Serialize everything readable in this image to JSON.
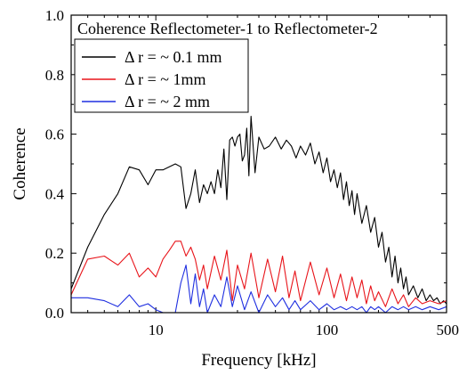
{
  "chart_data": {
    "type": "line",
    "title": "Coherence Reflectometer-1 to Reflectometer-2",
    "xlabel": "Frequency [kHz]",
    "ylabel": "Coherence",
    "x_scale": "log",
    "xlim": [
      3.2,
      500
    ],
    "ylim": [
      0.0,
      1.0
    ],
    "x_ticks": [
      10,
      100,
      500
    ],
    "x_tick_labels": [
      "10",
      "100",
      "500"
    ],
    "y_ticks": [
      0.0,
      0.2,
      0.4,
      0.6,
      0.8,
      1.0
    ],
    "y_tick_labels": [
      "0.0",
      "0.2",
      "0.4",
      "0.6",
      "0.8",
      "1.0"
    ],
    "grid": false,
    "legend_position": "top-left",
    "series": [
      {
        "name": "Δ r = ~ 0.1 mm",
        "color": "#000000",
        "x": [
          3.2,
          4,
          5,
          6,
          7,
          8,
          9,
          10,
          11,
          12,
          13,
          14,
          15,
          16,
          17,
          18,
          19,
          20,
          21,
          22,
          23,
          24,
          25,
          26,
          27,
          28,
          29,
          30,
          31,
          32,
          33,
          34,
          35,
          36,
          38,
          40,
          43,
          46,
          50,
          54,
          58,
          62,
          66,
          70,
          75,
          80,
          85,
          90,
          95,
          100,
          105,
          110,
          115,
          120,
          125,
          130,
          135,
          140,
          145,
          150,
          160,
          170,
          180,
          190,
          200,
          210,
          220,
          230,
          240,
          250,
          260,
          270,
          280,
          290,
          300,
          320,
          340,
          360,
          380,
          400,
          420,
          440,
          460,
          480,
          500
        ],
        "y": [
          0.08,
          0.22,
          0.33,
          0.4,
          0.49,
          0.48,
          0.43,
          0.48,
          0.48,
          0.49,
          0.5,
          0.49,
          0.35,
          0.4,
          0.48,
          0.37,
          0.43,
          0.4,
          0.44,
          0.4,
          0.48,
          0.42,
          0.55,
          0.38,
          0.58,
          0.59,
          0.56,
          0.59,
          0.6,
          0.51,
          0.53,
          0.62,
          0.46,
          0.66,
          0.47,
          0.59,
          0.55,
          0.56,
          0.59,
          0.55,
          0.58,
          0.56,
          0.52,
          0.56,
          0.53,
          0.57,
          0.5,
          0.54,
          0.47,
          0.52,
          0.44,
          0.48,
          0.42,
          0.47,
          0.38,
          0.44,
          0.36,
          0.41,
          0.33,
          0.4,
          0.3,
          0.36,
          0.27,
          0.32,
          0.22,
          0.27,
          0.17,
          0.22,
          0.12,
          0.19,
          0.1,
          0.15,
          0.08,
          0.12,
          0.06,
          0.09,
          0.05,
          0.08,
          0.04,
          0.06,
          0.04,
          0.05,
          0.03,
          0.04,
          0.03
        ]
      },
      {
        "name": "Δ r = ~ 1mm",
        "color": "#e8141a",
        "x": [
          3.2,
          4,
          5,
          6,
          7,
          8,
          9,
          10,
          11,
          12,
          13,
          14,
          15,
          16,
          17,
          18,
          19,
          20,
          22,
          24,
          26,
          28,
          30,
          33,
          36,
          40,
          45,
          50,
          55,
          60,
          65,
          70,
          80,
          90,
          100,
          110,
          120,
          130,
          140,
          150,
          160,
          170,
          180,
          190,
          200,
          220,
          240,
          260,
          280,
          300,
          330,
          360,
          400,
          450,
          500
        ],
        "y": [
          0.06,
          0.18,
          0.19,
          0.16,
          0.2,
          0.12,
          0.15,
          0.12,
          0.18,
          0.21,
          0.24,
          0.24,
          0.19,
          0.22,
          0.18,
          0.11,
          0.16,
          0.08,
          0.19,
          0.11,
          0.21,
          0.04,
          0.16,
          0.08,
          0.2,
          0.05,
          0.18,
          0.07,
          0.19,
          0.05,
          0.14,
          0.04,
          0.17,
          0.06,
          0.15,
          0.05,
          0.13,
          0.04,
          0.12,
          0.05,
          0.11,
          0.03,
          0.09,
          0.04,
          0.07,
          0.02,
          0.08,
          0.03,
          0.06,
          0.02,
          0.05,
          0.03,
          0.04,
          0.03,
          0.04
        ]
      },
      {
        "name": "Δ r = ~ 2 mm",
        "color": "#1f2fe0",
        "x": [
          3.2,
          4,
          5,
          6,
          7,
          8,
          9,
          10,
          11,
          12,
          13,
          14,
          15,
          16,
          17,
          18,
          19,
          20,
          22,
          24,
          26,
          28,
          30,
          33,
          36,
          40,
          45,
          50,
          55,
          60,
          65,
          70,
          80,
          90,
          100,
          110,
          120,
          130,
          140,
          150,
          160,
          170,
          180,
          190,
          200,
          220,
          240,
          260,
          280,
          300,
          330,
          360,
          400,
          450,
          500
        ],
        "y": [
          0.05,
          0.05,
          0.04,
          0.02,
          0.06,
          0.02,
          0.03,
          0.01,
          0.0,
          0.0,
          0.0,
          0.1,
          0.16,
          0.03,
          0.13,
          0.02,
          0.08,
          0.0,
          0.06,
          0.02,
          0.12,
          0.02,
          0.09,
          0.01,
          0.07,
          0.0,
          0.06,
          0.02,
          0.05,
          0.01,
          0.04,
          0.01,
          0.04,
          0.01,
          0.03,
          0.01,
          0.02,
          0.01,
          0.02,
          0.01,
          0.02,
          0.0,
          0.02,
          0.01,
          0.02,
          0.0,
          0.02,
          0.01,
          0.02,
          0.01,
          0.02,
          0.01,
          0.02,
          0.01,
          0.02
        ]
      }
    ]
  }
}
